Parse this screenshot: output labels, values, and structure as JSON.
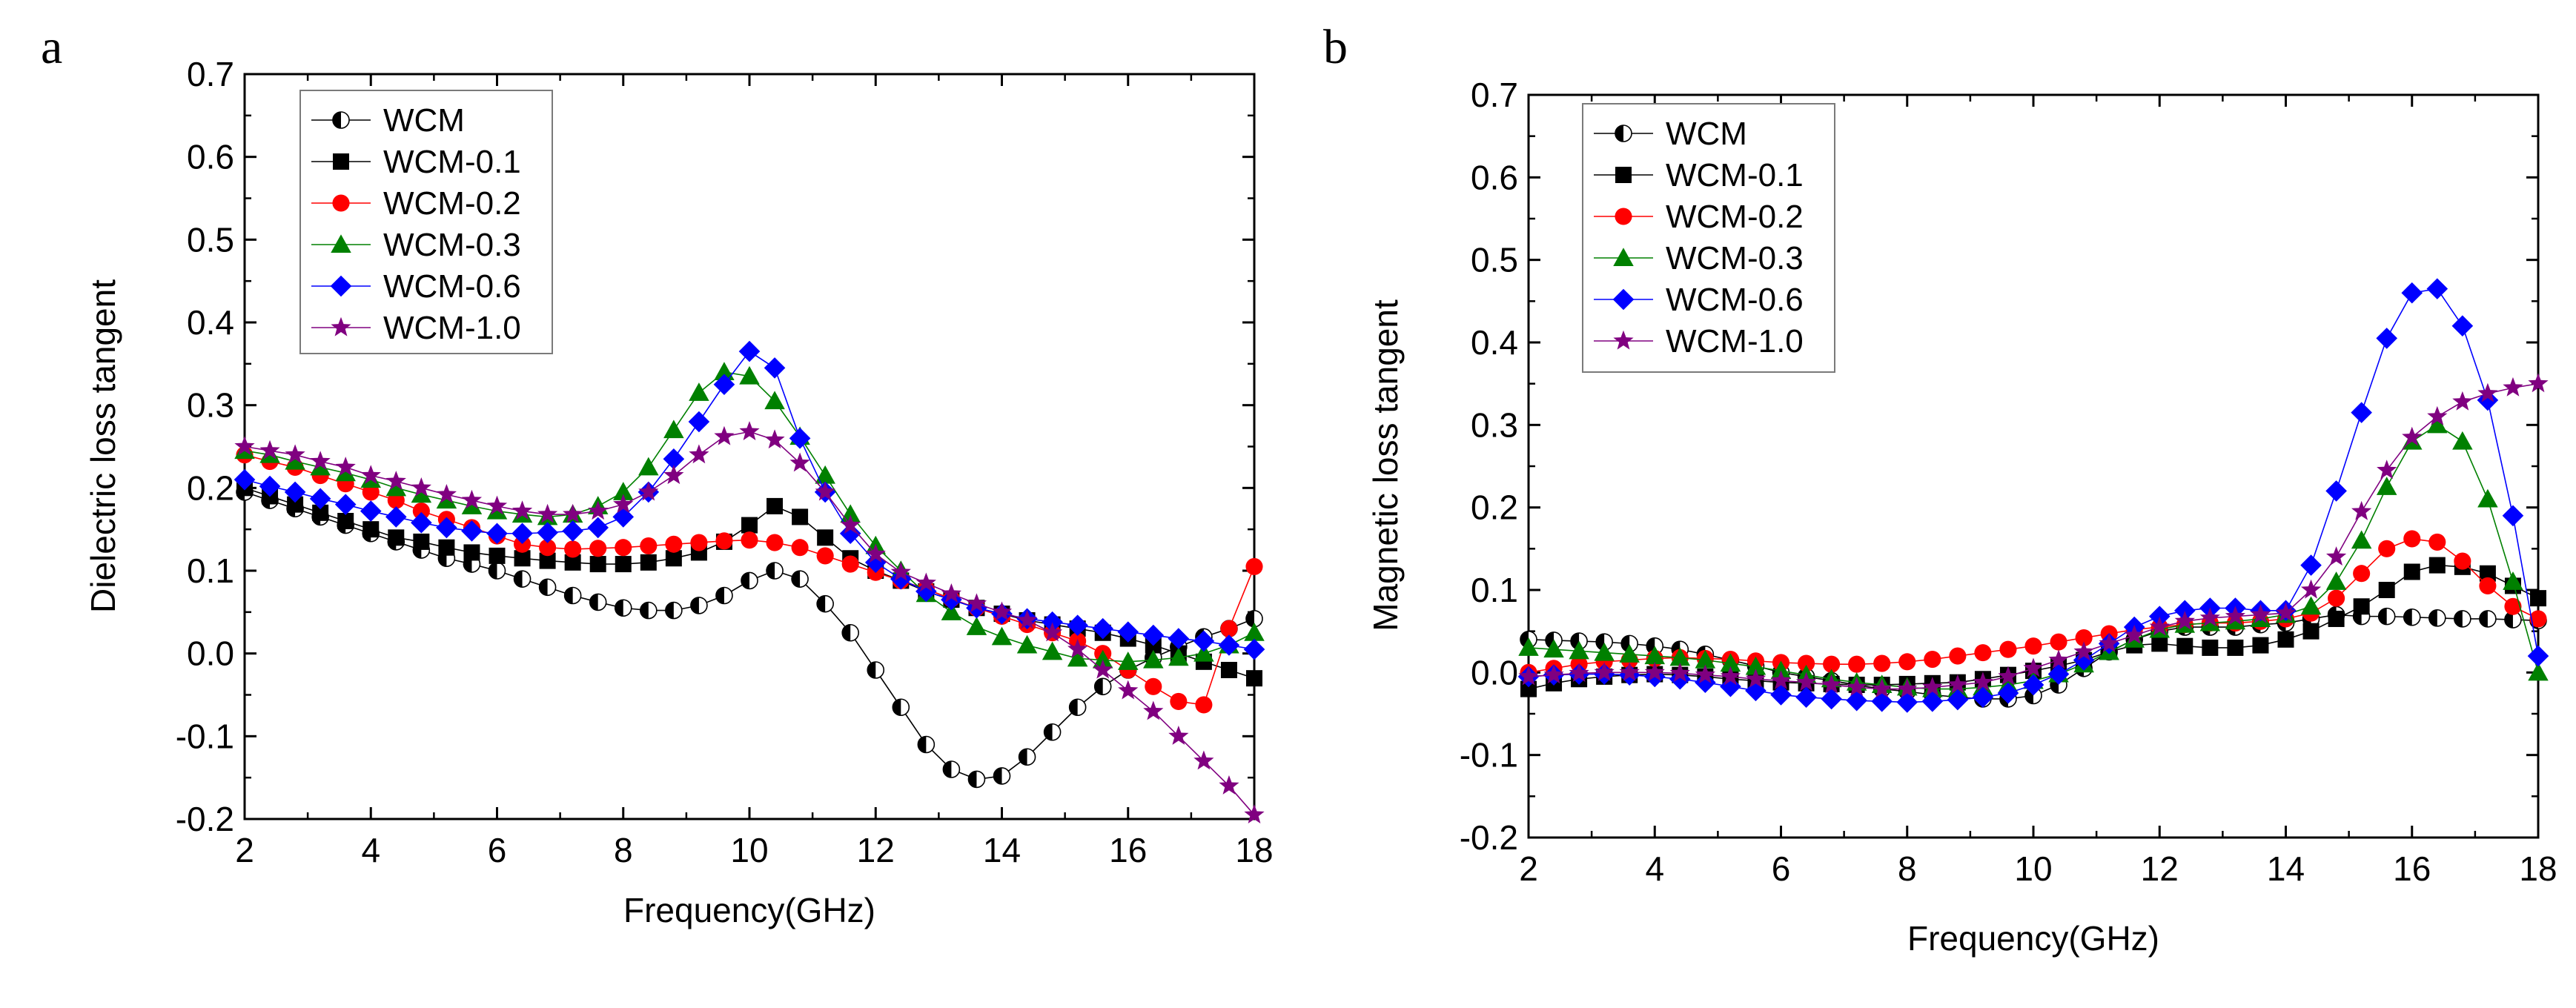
{
  "chart_data": [
    {
      "type": "line",
      "panel_label": "a",
      "title": "",
      "xlabel": "Frequency(GHz)",
      "ylabel": "Dielectric loss tangent",
      "xlim": [
        2,
        18
      ],
      "ylim": [
        -0.2,
        0.7
      ],
      "xticks": [
        "2",
        "4",
        "6",
        "8",
        "10",
        "12",
        "14",
        "16",
        "18"
      ],
      "yticks": [
        "-0.2",
        "-0.1",
        "0.0",
        "0.1",
        "0.2",
        "0.3",
        "0.4",
        "0.5",
        "0.6",
        "0.7"
      ],
      "legend_position": "top-left",
      "x": [
        2.0,
        2.4,
        2.8,
        3.2,
        3.6,
        4.0,
        4.4,
        4.8,
        5.2,
        5.6,
        6.0,
        6.4,
        6.8,
        7.2,
        7.6,
        8.0,
        8.4,
        8.8,
        9.2,
        9.6,
        10.0,
        10.4,
        10.8,
        11.2,
        11.6,
        12.0,
        12.4,
        12.8,
        13.2,
        13.6,
        14.0,
        14.4,
        14.8,
        15.2,
        15.6,
        16.0,
        16.4,
        16.8,
        17.2,
        17.6,
        18.0
      ],
      "series": [
        {
          "name": "WCM",
          "marker": "half-circle",
          "color": "#000000",
          "values": [
            0.195,
            0.185,
            0.175,
            0.165,
            0.155,
            0.145,
            0.135,
            0.125,
            0.115,
            0.108,
            0.1,
            0.09,
            0.08,
            0.07,
            0.062,
            0.055,
            0.052,
            0.052,
            0.058,
            0.07,
            0.088,
            0.1,
            0.09,
            0.06,
            0.025,
            -0.02,
            -0.065,
            -0.11,
            -0.14,
            -0.152,
            -0.148,
            -0.125,
            -0.095,
            -0.065,
            -0.04,
            -0.02,
            -0.005,
            0.008,
            0.02,
            0.03,
            0.042
          ]
        },
        {
          "name": "WCM-0.1",
          "marker": "square",
          "color": "#000000",
          "values": [
            0.2,
            0.19,
            0.18,
            0.17,
            0.16,
            0.15,
            0.14,
            0.135,
            0.128,
            0.122,
            0.118,
            0.115,
            0.112,
            0.11,
            0.108,
            0.108,
            0.11,
            0.115,
            0.122,
            0.135,
            0.155,
            0.178,
            0.165,
            0.14,
            0.115,
            0.1,
            0.088,
            0.075,
            0.065,
            0.055,
            0.048,
            0.04,
            0.035,
            0.03,
            0.025,
            0.018,
            0.01,
            0.0,
            -0.01,
            -0.02,
            -0.03
          ]
        },
        {
          "name": "WCM-0.2",
          "marker": "circle",
          "color": "#ff0000",
          "values": [
            0.24,
            0.232,
            0.225,
            0.215,
            0.205,
            0.195,
            0.185,
            0.172,
            0.162,
            0.152,
            0.142,
            0.132,
            0.128,
            0.126,
            0.127,
            0.128,
            0.13,
            0.132,
            0.134,
            0.136,
            0.137,
            0.134,
            0.128,
            0.118,
            0.108,
            0.098,
            0.088,
            0.078,
            0.066,
            0.055,
            0.045,
            0.035,
            0.025,
            0.015,
            0.0,
            -0.02,
            -0.04,
            -0.058,
            -0.062,
            0.03,
            0.105
          ]
        },
        {
          "name": "WCM-0.3",
          "marker": "triangle",
          "color": "#008000",
          "values": [
            0.245,
            0.24,
            0.232,
            0.225,
            0.218,
            0.21,
            0.2,
            0.192,
            0.185,
            0.178,
            0.172,
            0.168,
            0.165,
            0.168,
            0.178,
            0.195,
            0.225,
            0.27,
            0.315,
            0.34,
            0.335,
            0.305,
            0.262,
            0.215,
            0.168,
            0.13,
            0.1,
            0.072,
            0.05,
            0.032,
            0.02,
            0.01,
            0.002,
            -0.006,
            -0.008,
            -0.01,
            -0.008,
            -0.005,
            0.0,
            0.01,
            0.025
          ]
        },
        {
          "name": "WCM-0.6",
          "marker": "diamond",
          "color": "#0000ff",
          "values": [
            0.21,
            0.202,
            0.195,
            0.187,
            0.18,
            0.172,
            0.165,
            0.158,
            0.152,
            0.148,
            0.145,
            0.145,
            0.146,
            0.148,
            0.152,
            0.165,
            0.195,
            0.235,
            0.28,
            0.325,
            0.365,
            0.345,
            0.26,
            0.195,
            0.145,
            0.11,
            0.09,
            0.075,
            0.065,
            0.055,
            0.048,
            0.042,
            0.038,
            0.034,
            0.03,
            0.026,
            0.022,
            0.018,
            0.015,
            0.01,
            0.005
          ]
        },
        {
          "name": "WCM-1.0",
          "marker": "star",
          "color": "#800080",
          "values": [
            0.25,
            0.245,
            0.24,
            0.232,
            0.225,
            0.215,
            0.208,
            0.2,
            0.192,
            0.185,
            0.178,
            0.172,
            0.168,
            0.168,
            0.172,
            0.18,
            0.195,
            0.215,
            0.24,
            0.262,
            0.268,
            0.258,
            0.23,
            0.195,
            0.155,
            0.12,
            0.098,
            0.085,
            0.072,
            0.06,
            0.05,
            0.04,
            0.025,
            0.005,
            -0.02,
            -0.045,
            -0.07,
            -0.1,
            -0.13,
            -0.16,
            -0.195
          ]
        }
      ]
    },
    {
      "type": "line",
      "panel_label": "b",
      "title": "",
      "xlabel": "Frequency(GHz)",
      "ylabel": "Magnetic loss tangent",
      "xlim": [
        2,
        18
      ],
      "ylim": [
        -0.2,
        0.7
      ],
      "xticks": [
        "2",
        "4",
        "6",
        "8",
        "10",
        "12",
        "14",
        "16",
        "18"
      ],
      "yticks": [
        "-0.2",
        "-0.1",
        "0.0",
        "0.1",
        "0.2",
        "0.3",
        "0.4",
        "0.5",
        "0.6",
        "0.7"
      ],
      "legend_position": "top-left",
      "x": [
        2.0,
        2.4,
        2.8,
        3.2,
        3.6,
        4.0,
        4.4,
        4.8,
        5.2,
        5.6,
        6.0,
        6.4,
        6.8,
        7.2,
        7.6,
        8.0,
        8.4,
        8.8,
        9.2,
        9.6,
        10.0,
        10.4,
        10.8,
        11.2,
        11.6,
        12.0,
        12.4,
        12.8,
        13.2,
        13.6,
        14.0,
        14.4,
        14.8,
        15.2,
        15.6,
        16.0,
        16.4,
        16.8,
        17.2,
        17.6,
        18.0
      ],
      "series": [
        {
          "name": "WCM",
          "marker": "half-circle",
          "color": "#000000",
          "values": [
            0.04,
            0.039,
            0.038,
            0.037,
            0.035,
            0.032,
            0.028,
            0.022,
            0.015,
            0.008,
            0.0,
            -0.005,
            -0.01,
            -0.015,
            -0.02,
            -0.023,
            -0.027,
            -0.03,
            -0.032,
            -0.032,
            -0.028,
            -0.015,
            0.005,
            0.025,
            0.04,
            0.05,
            0.055,
            0.055,
            0.055,
            0.058,
            0.06,
            0.065,
            0.07,
            0.068,
            0.068,
            0.067,
            0.066,
            0.065,
            0.065,
            0.064,
            0.063
          ]
        },
        {
          "name": "WCM-0.1",
          "marker": "square",
          "color": "#000000",
          "values": [
            -0.02,
            -0.013,
            -0.008,
            -0.005,
            -0.003,
            -0.002,
            -0.003,
            -0.005,
            -0.008,
            -0.01,
            -0.012,
            -0.013,
            -0.014,
            -0.015,
            -0.015,
            -0.014,
            -0.013,
            -0.012,
            -0.008,
            -0.003,
            0.002,
            0.008,
            0.015,
            0.025,
            0.033,
            0.035,
            0.032,
            0.03,
            0.03,
            0.033,
            0.04,
            0.05,
            0.065,
            0.08,
            0.1,
            0.122,
            0.13,
            0.128,
            0.12,
            0.105,
            0.09
          ]
        },
        {
          "name": "WCM-0.2",
          "marker": "circle",
          "color": "#ff0000",
          "values": [
            0.0,
            0.005,
            0.01,
            0.013,
            0.015,
            0.017,
            0.018,
            0.017,
            0.016,
            0.014,
            0.012,
            0.011,
            0.01,
            0.01,
            0.011,
            0.013,
            0.016,
            0.02,
            0.024,
            0.028,
            0.032,
            0.037,
            0.042,
            0.047,
            0.052,
            0.055,
            0.058,
            0.06,
            0.06,
            0.062,
            0.065,
            0.072,
            0.09,
            0.12,
            0.15,
            0.162,
            0.158,
            0.135,
            0.105,
            0.08,
            0.065
          ]
        },
        {
          "name": "WCM-0.3",
          "marker": "triangle",
          "color": "#008000",
          "values": [
            0.03,
            0.028,
            0.026,
            0.024,
            0.022,
            0.02,
            0.018,
            0.015,
            0.011,
            0.007,
            0.002,
            -0.003,
            -0.008,
            -0.012,
            -0.015,
            -0.018,
            -0.02,
            -0.02,
            -0.018,
            -0.015,
            -0.01,
            -0.002,
            0.01,
            0.025,
            0.04,
            0.052,
            0.058,
            0.06,
            0.062,
            0.065,
            0.07,
            0.08,
            0.11,
            0.16,
            0.225,
            0.28,
            0.3,
            0.28,
            0.21,
            0.11,
            0.0
          ]
        },
        {
          "name": "WCM-0.6",
          "marker": "diamond",
          "color": "#0000ff",
          "values": [
            -0.005,
            -0.003,
            -0.002,
            -0.002,
            -0.003,
            -0.005,
            -0.008,
            -0.012,
            -0.017,
            -0.022,
            -0.027,
            -0.03,
            -0.032,
            -0.034,
            -0.035,
            -0.036,
            -0.035,
            -0.033,
            -0.03,
            -0.025,
            -0.015,
            -0.002,
            0.015,
            0.035,
            0.055,
            0.068,
            0.075,
            0.078,
            0.078,
            0.075,
            0.075,
            0.13,
            0.22,
            0.315,
            0.405,
            0.46,
            0.465,
            0.42,
            0.33,
            0.19,
            0.02
          ]
        },
        {
          "name": "WCM-1.0",
          "marker": "star",
          "color": "#800080",
          "values": [
            -0.005,
            -0.003,
            -0.001,
            0.0,
            0.0,
            0.0,
            -0.001,
            -0.003,
            -0.005,
            -0.008,
            -0.01,
            -0.012,
            -0.015,
            -0.018,
            -0.02,
            -0.02,
            -0.018,
            -0.015,
            -0.012,
            -0.005,
            0.005,
            0.015,
            0.025,
            0.035,
            0.045,
            0.055,
            0.062,
            0.066,
            0.068,
            0.07,
            0.072,
            0.1,
            0.14,
            0.195,
            0.245,
            0.285,
            0.31,
            0.328,
            0.338,
            0.345,
            0.35
          ]
        }
      ]
    }
  ]
}
